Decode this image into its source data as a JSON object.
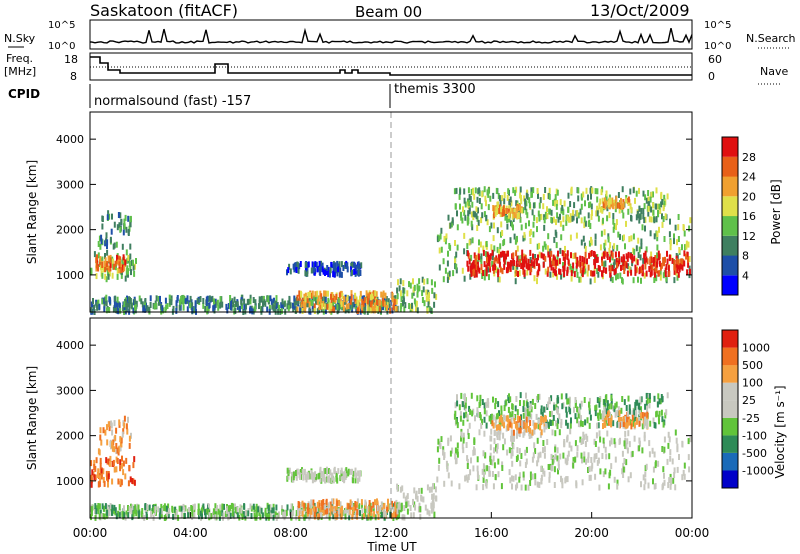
{
  "header": {
    "station": "Saskatoon (fitACF)",
    "beam": "Beam 00",
    "date": "13/Oct/2009"
  },
  "top_panels": {
    "nsky_label": "N.Sky",
    "nsky_ticks": [
      "10^5",
      "10^0"
    ],
    "nsearch_ticks": [
      "10^5",
      "10^0"
    ],
    "nsearch_label": "N.Search",
    "freq_label": "Freq.",
    "freq_unit": "[MHz]",
    "freq_ticks": [
      "18",
      "8"
    ],
    "nave_ticks": [
      "60",
      "0"
    ],
    "nave_label": "Nave",
    "cpid_label": "CPID",
    "cpid_1": "normalsound (fast) -157",
    "cpid_2": "themis 3300"
  },
  "chart_data": [
    {
      "type": "heatmap",
      "name": "power",
      "ylabel": "Slant Range [km]",
      "yticks": [
        "4000",
        "3000",
        "2000",
        "1000"
      ],
      "ylim": [
        180,
        4600
      ],
      "xlim": [
        0,
        24
      ],
      "colorbar_label": "Power [dB]",
      "colorbar_ticks": [
        "28",
        "24",
        "20",
        "16",
        "12",
        "8",
        "4"
      ],
      "colorbar_colors": [
        "#0000ff",
        "#1e4fa8",
        "#3f7f60",
        "#5fc04a",
        "#dfe04a",
        "#f0a030",
        "#e86018",
        "#e01010"
      ],
      "clusters": [
        {
          "t0": 0.0,
          "t1": 1.8,
          "r0": 900,
          "r1": 1500,
          "level": 3
        },
        {
          "t0": 0.3,
          "t1": 1.6,
          "r0": 1600,
          "r1": 2400,
          "level": 2
        },
        {
          "t0": 0.2,
          "t1": 1.4,
          "r0": 1100,
          "r1": 1400,
          "level": 6
        },
        {
          "t0": 0.0,
          "t1": 12.5,
          "r0": 180,
          "r1": 500,
          "level": 2
        },
        {
          "t0": 8.2,
          "t1": 12.2,
          "r0": 200,
          "r1": 600,
          "level": 5
        },
        {
          "t0": 7.8,
          "t1": 10.8,
          "r0": 1000,
          "r1": 1250,
          "level": 1
        },
        {
          "t0": 12.2,
          "t1": 13.8,
          "r0": 180,
          "r1": 900,
          "level": 3
        },
        {
          "t0": 13.8,
          "t1": 23.9,
          "r0": 850,
          "r1": 2300,
          "level": 3
        },
        {
          "t0": 15.0,
          "t1": 23.9,
          "r0": 1000,
          "r1": 1500,
          "level": 7
        },
        {
          "t0": 14.5,
          "t1": 23.0,
          "r0": 2200,
          "r1": 2900,
          "level": 3
        },
        {
          "t0": 16.0,
          "t1": 17.2,
          "r0": 2300,
          "r1": 2500,
          "level": 5
        },
        {
          "t0": 20.4,
          "t1": 21.5,
          "r0": 2500,
          "r1": 2700,
          "level": 5
        }
      ]
    },
    {
      "type": "heatmap",
      "name": "velocity",
      "ylabel": "Slant Range [km]",
      "yticks": [
        "4000",
        "3000",
        "2000",
        "1000"
      ],
      "ylim": [
        180,
        4600
      ],
      "xlim": [
        0,
        24
      ],
      "colorbar_label": "Velocity [m s⁻¹]",
      "colorbar_ticks": [
        "1000",
        "500",
        "100",
        "25",
        "-25",
        "-100",
        "-500",
        "-1000"
      ],
      "colorbar_colors": [
        "#0000c8",
        "#1a6ab8",
        "#2e8b57",
        "#61c43a",
        "#c8c8c0",
        "#c8c8c0",
        "#f5a040",
        "#f07020",
        "#e02010"
      ],
      "clusters": [
        {
          "t0": 0.0,
          "t1": 1.8,
          "r0": 900,
          "r1": 1500,
          "level": 7
        },
        {
          "t0": 0.3,
          "t1": 1.6,
          "r0": 1600,
          "r1": 2400,
          "level": 6
        },
        {
          "t0": 0.0,
          "t1": 12.5,
          "r0": 180,
          "r1": 450,
          "level": 3
        },
        {
          "t0": 8.2,
          "t1": 12.2,
          "r0": 200,
          "r1": 550,
          "level": 6
        },
        {
          "t0": 7.8,
          "t1": 10.8,
          "r0": 1000,
          "r1": 1250,
          "level": 4
        },
        {
          "t0": 12.2,
          "t1": 13.8,
          "r0": 180,
          "r1": 900,
          "level": 4
        },
        {
          "t0": 13.8,
          "t1": 23.9,
          "r0": 850,
          "r1": 2100,
          "level": 4
        },
        {
          "t0": 14.5,
          "t1": 23.0,
          "r0": 2200,
          "r1": 2900,
          "level": 3
        },
        {
          "t0": 16.0,
          "t1": 18.2,
          "r0": 2050,
          "r1": 2400,
          "level": 6
        },
        {
          "t0": 20.4,
          "t1": 22.2,
          "r0": 2200,
          "r1": 2500,
          "level": 6
        }
      ]
    }
  ],
  "x_axis": {
    "ticks": [
      "00:00",
      "04:00",
      "08:00",
      "12:00",
      "16:00",
      "20:00",
      "00:00"
    ],
    "label": "Time UT"
  }
}
